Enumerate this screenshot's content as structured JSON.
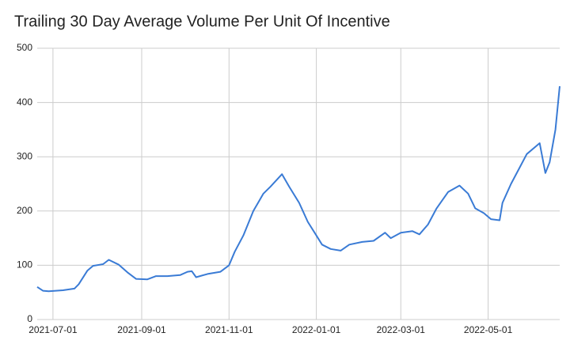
{
  "chart_data": {
    "type": "line",
    "title": "Trailing 30 Day Average Volume Per Unit Of Incentive",
    "x": [
      "2021-06-20",
      "2021-06-24",
      "2021-06-28",
      "2021-07-08",
      "2021-07-16",
      "2021-07-19",
      "2021-07-25",
      "2021-07-29",
      "2021-08-05",
      "2021-08-09",
      "2021-08-16",
      "2021-08-22",
      "2021-08-28",
      "2021-09-05",
      "2021-09-11",
      "2021-09-19",
      "2021-09-28",
      "2021-10-03",
      "2021-10-06",
      "2021-10-09",
      "2021-10-17",
      "2021-10-26",
      "2021-11-01",
      "2021-11-05",
      "2021-11-11",
      "2021-11-18",
      "2021-11-25",
      "2021-11-30",
      "2021-12-08",
      "2021-12-13",
      "2021-12-20",
      "2021-12-26",
      "2022-01-01",
      "2022-01-05",
      "2022-01-11",
      "2022-01-18",
      "2022-01-24",
      "2022-02-02",
      "2022-02-10",
      "2022-02-18",
      "2022-02-22",
      "2022-03-01",
      "2022-03-09",
      "2022-03-14",
      "2022-03-20",
      "2022-03-26",
      "2022-04-03",
      "2022-04-11",
      "2022-04-17",
      "2022-04-22",
      "2022-04-28",
      "2022-05-03",
      "2022-05-09",
      "2022-05-11",
      "2022-05-17",
      "2022-05-23",
      "2022-05-28",
      "2022-06-06",
      "2022-06-10",
      "2022-06-13",
      "2022-06-17",
      "2022-06-20"
    ],
    "series": [
      {
        "name": "Trailing 30 Day Average Volume Per Unit Of Incentive",
        "color": "#3a7bd5",
        "values": [
          60,
          53,
          52,
          54,
          57,
          65,
          90,
          99,
          102,
          110,
          101,
          87,
          75,
          74,
          80,
          80,
          82,
          88,
          89,
          78,
          84,
          88,
          100,
          125,
          155,
          200,
          232,
          245,
          268,
          245,
          215,
          180,
          155,
          138,
          130,
          127,
          138,
          143,
          145,
          160,
          150,
          160,
          163,
          157,
          175,
          205,
          235,
          247,
          232,
          205,
          196,
          185,
          183,
          215,
          250,
          280,
          305,
          325,
          270,
          290,
          350,
          430
        ]
      }
    ],
    "xlim": [
      "2021-06-20",
      "2022-06-20"
    ],
    "xticks": [
      "2021-07-01",
      "2021-09-01",
      "2021-11-01",
      "2022-01-01",
      "2022-03-01",
      "2022-05-01"
    ],
    "ylim": [
      0,
      500
    ],
    "yticks": [
      0,
      100,
      200,
      300,
      400,
      500
    ],
    "grid": true
  }
}
